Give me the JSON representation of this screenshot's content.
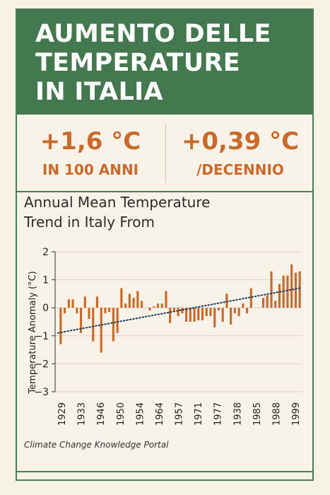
{
  "header": {
    "title_line1": "AUMENTO DELLE",
    "title_line2": "TEMPERATURE",
    "title_line3": "IN ITALIA"
  },
  "stats": [
    {
      "value": "+1,6 °C",
      "label": "IN 100 ANNI"
    },
    {
      "value": "+0,39 °C",
      "label": "/DECENNIO"
    }
  ],
  "chart_data": {
    "type": "bar",
    "title_line1": "Annual Mean Temperature",
    "title_line2": "Trend in Italy From",
    "ylabel": "Temperature Anomaly (°C)",
    "xlabel": "",
    "ylim": [
      -3,
      2
    ],
    "yticks": [
      2,
      1,
      0,
      -1,
      -2,
      -3
    ],
    "xtick_labels": [
      "1929",
      "1933",
      "1946",
      "1950",
      "1954",
      "1964",
      "1957",
      "1971",
      "1977",
      "1938",
      "1985",
      "1988",
      "1999"
    ],
    "values": [
      -1.3,
      -0.2,
      0.3,
      0.3,
      -0.2,
      -0.9,
      0.4,
      -0.4,
      -1.2,
      0.4,
      -1.6,
      -0.2,
      -0.15,
      -1.2,
      -0.9,
      0.7,
      0.15,
      0.5,
      0.35,
      0.6,
      0.25,
      0.0,
      -0.1,
      0.05,
      0.15,
      0.15,
      0.6,
      -0.55,
      -0.1,
      -0.3,
      -0.2,
      -0.5,
      -0.5,
      -0.5,
      -0.45,
      -0.45,
      -0.3,
      -0.3,
      -0.7,
      -0.1,
      -0.5,
      0.5,
      -0.6,
      -0.2,
      -0.3,
      0.15,
      -0.2,
      0.7,
      0.0,
      0.0,
      0.35,
      0.45,
      1.3,
      0.25,
      0.85,
      1.15,
      1.15,
      1.55,
      1.25,
      1.3
    ],
    "trend": {
      "start": -0.9,
      "end": 0.7,
      "style": "dotted"
    },
    "colors": {
      "bar": "#c96a2c",
      "trend": "#1f3a5f",
      "grid": "#d9d2c2"
    }
  },
  "source": "Climate Change Knowledge Portal",
  "colors": {
    "header_bg": "#44784f",
    "accent": "#c96a2c",
    "background": "#f7f2e6"
  }
}
